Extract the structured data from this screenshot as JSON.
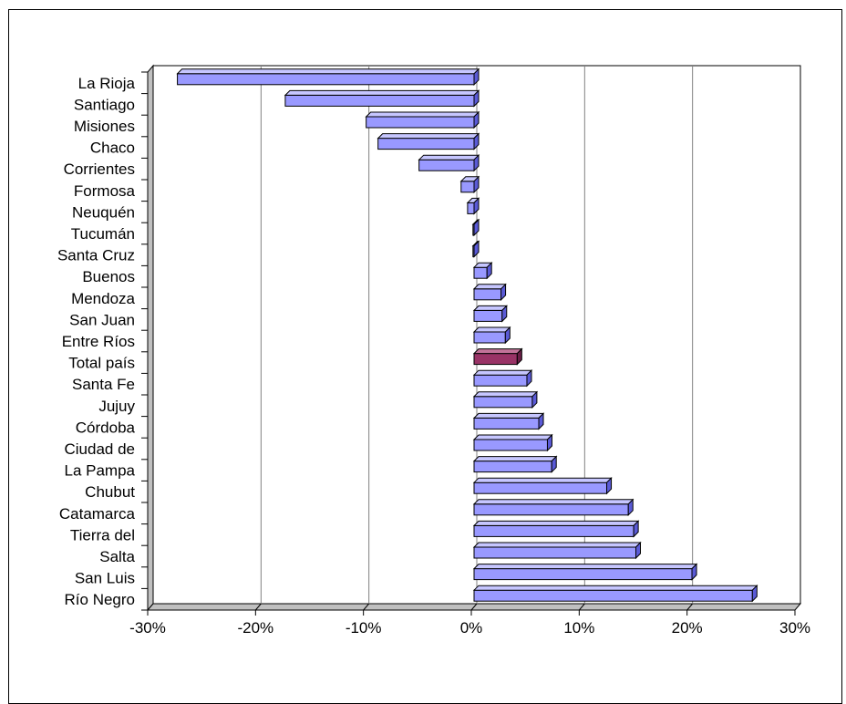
{
  "chart_data": {
    "type": "bar",
    "orientation": "horizontal",
    "style": "3d",
    "categories": [
      "La Rioja",
      "Santiago",
      "Misiones",
      "Chaco",
      "Corrientes",
      "Formosa",
      "Neuquén",
      "Tucumán",
      "Santa Cruz",
      "Buenos",
      "Mendoza",
      "San Juan",
      "Entre Ríos",
      "Total país",
      "Santa Fe",
      "Jujuy",
      "Córdoba",
      "Ciudad de",
      "La Pampa",
      "Chubut",
      "Catamarca",
      "Tierra del",
      "Salta",
      "San Luis",
      "Río Negro"
    ],
    "values": [
      -27.5,
      -17.5,
      -10,
      -8.9,
      -5.1,
      -1.2,
      -0.6,
      -0.1,
      -0.1,
      1.2,
      2.5,
      2.6,
      2.9,
      4,
      4.9,
      5.4,
      6,
      6.8,
      7.2,
      12.3,
      14.3,
      14.8,
      15,
      20.2,
      25.8
    ],
    "highlight": "Total país",
    "xlim": [
      -30,
      30
    ],
    "xticks": [
      "-30%",
      "-20%",
      "-10%",
      "0%",
      "10%",
      "20%",
      "30%"
    ],
    "grid": true,
    "colors": {
      "bar_face": "#9999ff",
      "bar_top": "#c6c6ff",
      "bar_side": "#5a5ad6",
      "highlight_face": "#993366",
      "highlight_top": "#c27399",
      "highlight_side": "#6b1f47",
      "grid": "#808080",
      "wall": "#ffffff"
    }
  }
}
